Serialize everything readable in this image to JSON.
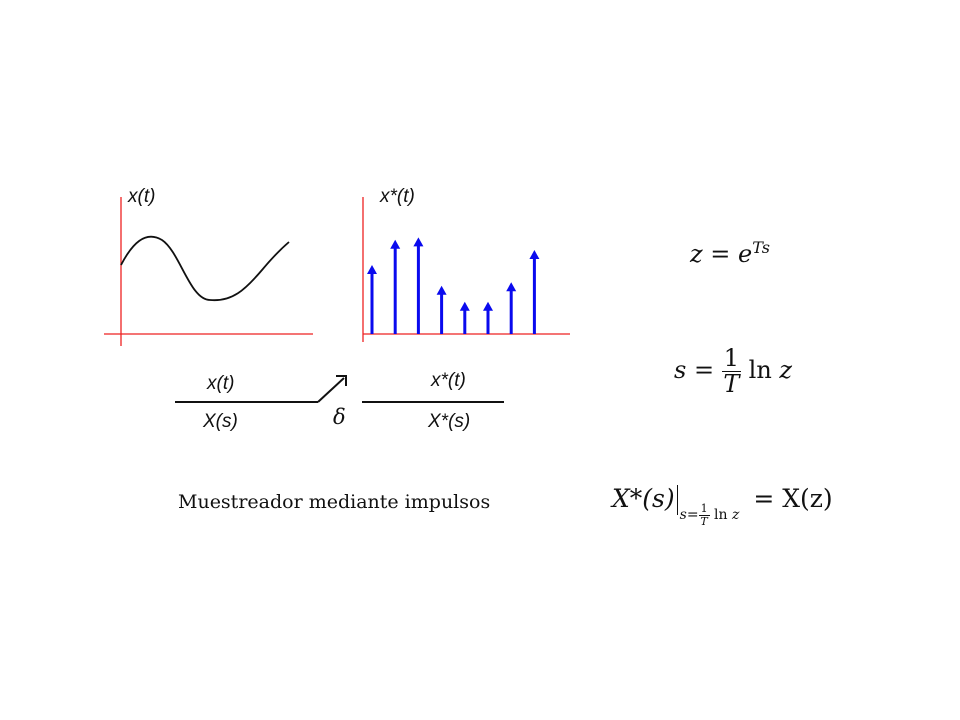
{
  "plots": {
    "continuous": {
      "ylabel": "x(t)"
    },
    "sampled": {
      "ylabel": "x*(t)",
      "impulses": [
        0.6,
        0.82,
        0.84,
        0.42,
        0.28,
        0.28,
        0.45,
        0.73
      ]
    }
  },
  "sampler": {
    "input_top": "x(t)",
    "input_bottom": "X(s)",
    "switch_symbol": "δ",
    "output_top": "x*(t)",
    "output_bottom": "X*(s)"
  },
  "caption": "Muestreador mediante impulsos",
  "equations": {
    "eq1": {
      "lhs": "z",
      "op": "=",
      "base": "e",
      "exp": "Ts"
    },
    "eq2": {
      "lhs": "s",
      "op": "=",
      "num": "1",
      "den": "T",
      "func": "ln",
      "arg": "z"
    },
    "eq3": {
      "lhs": "X*(s)",
      "sub_var": "s",
      "sub_eq": "=",
      "sub_num": "1",
      "sub_den": "T",
      "sub_func": "ln",
      "sub_arg": "z",
      "rhs": "= X(z)"
    }
  },
  "colors": {
    "axis": "#ee2222",
    "impulse": "#0a0aee",
    "curve": "#111111"
  }
}
